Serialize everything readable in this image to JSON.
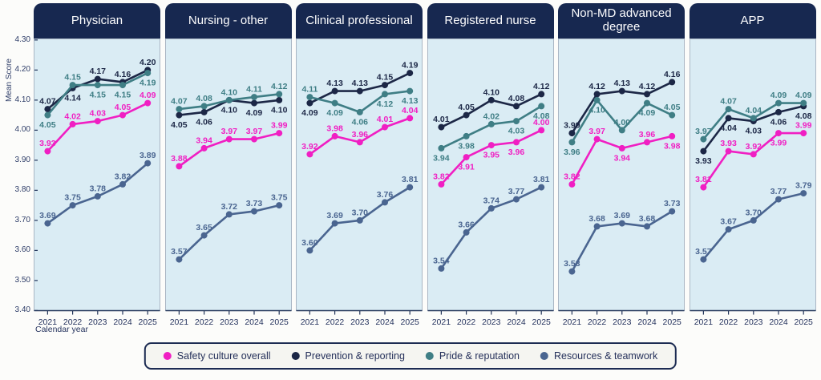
{
  "chart_data": {
    "type": "line",
    "ylabel": "Mean Score",
    "xlabel": "Calendar year",
    "ylim": [
      3.4,
      4.3
    ],
    "yticks": [
      "4.30",
      "4.20",
      "4.10",
      "4.00",
      "3.90",
      "3.80",
      "3.70",
      "3.60",
      "3.50",
      "3.40"
    ],
    "x": [
      "2021",
      "2022",
      "2023",
      "2024",
      "2025"
    ],
    "grid": false,
    "legend_position": "bottom",
    "series_defs": [
      {
        "name": "Safety culture overall",
        "color": "#F01FC3"
      },
      {
        "name": "Prevention & reporting",
        "color": "#1C2746"
      },
      {
        "name": "Pride & reputation",
        "color": "#3F7E85"
      },
      {
        "name": "Resources & teamwork",
        "color": "#4A6590"
      }
    ],
    "panels": [
      {
        "title": "Physician",
        "series": [
          {
            "name": "Safety culture overall",
            "values": [
              3.93,
              4.02,
              4.03,
              4.05,
              4.09
            ]
          },
          {
            "name": "Prevention & reporting",
            "values": [
              4.07,
              4.14,
              4.17,
              4.16,
              4.2
            ]
          },
          {
            "name": "Pride & reputation",
            "values": [
              4.05,
              4.15,
              4.15,
              4.15,
              4.19
            ]
          },
          {
            "name": "Resources & teamwork",
            "values": [
              3.69,
              3.75,
              3.78,
              3.82,
              3.89
            ]
          }
        ]
      },
      {
        "title": "Nursing - other",
        "series": [
          {
            "name": "Safety culture overall",
            "values": [
              3.88,
              3.94,
              3.97,
              3.97,
              3.99
            ]
          },
          {
            "name": "Prevention & reporting",
            "values": [
              4.05,
              4.06,
              4.1,
              4.09,
              4.1
            ]
          },
          {
            "name": "Pride & reputation",
            "values": [
              4.07,
              4.08,
              4.1,
              4.11,
              4.12
            ]
          },
          {
            "name": "Resources & teamwork",
            "values": [
              3.57,
              3.65,
              3.72,
              3.73,
              3.75
            ]
          }
        ]
      },
      {
        "title": "Clinical professional",
        "series": [
          {
            "name": "Safety culture overall",
            "values": [
              3.92,
              3.98,
              3.96,
              4.01,
              4.04
            ]
          },
          {
            "name": "Prevention & reporting",
            "values": [
              4.09,
              4.13,
              4.13,
              4.15,
              4.19
            ]
          },
          {
            "name": "Pride & reputation",
            "values": [
              4.11,
              4.09,
              4.06,
              4.12,
              4.13
            ]
          },
          {
            "name": "Resources & teamwork",
            "values": [
              3.6,
              3.69,
              3.7,
              3.76,
              3.81
            ]
          }
        ]
      },
      {
        "title": "Registered nurse",
        "series": [
          {
            "name": "Safety culture overall",
            "values": [
              3.82,
              3.91,
              3.95,
              3.96,
              4.0
            ]
          },
          {
            "name": "Prevention & reporting",
            "values": [
              4.01,
              4.05,
              4.1,
              4.08,
              4.12
            ]
          },
          {
            "name": "Pride & reputation",
            "values": [
              3.94,
              3.98,
              4.02,
              4.03,
              4.08
            ]
          },
          {
            "name": "Resources & teamwork",
            "values": [
              3.54,
              3.66,
              3.74,
              3.77,
              3.81
            ]
          }
        ]
      },
      {
        "title": "Non-MD advanced degree",
        "series": [
          {
            "name": "Safety culture overall",
            "values": [
              3.82,
              3.97,
              3.94,
              3.96,
              3.98
            ]
          },
          {
            "name": "Prevention & reporting",
            "values": [
              3.99,
              4.12,
              4.13,
              4.12,
              4.16
            ]
          },
          {
            "name": "Pride & reputation",
            "values": [
              3.96,
              4.1,
              4.0,
              4.09,
              4.05
            ]
          },
          {
            "name": "Resources & teamwork",
            "values": [
              3.53,
              3.68,
              3.69,
              3.68,
              3.73
            ]
          }
        ]
      },
      {
        "title": "APP",
        "series": [
          {
            "name": "Safety culture overall",
            "values": [
              3.81,
              3.93,
              3.92,
              3.99,
              3.99
            ]
          },
          {
            "name": "Prevention & reporting",
            "values": [
              3.93,
              4.04,
              4.03,
              4.06,
              4.08
            ]
          },
          {
            "name": "Pride & reputation",
            "values": [
              3.97,
              4.07,
              4.04,
              4.09,
              4.09
            ]
          },
          {
            "name": "Resources & teamwork",
            "values": [
              3.57,
              3.67,
              3.7,
              3.77,
              3.79
            ]
          }
        ]
      }
    ],
    "colors": {
      "panel_background": "#DAECF4",
      "panel_border": "#A9B6C4",
      "axis": "#223459",
      "header_background": "#172850",
      "header_text": "#FDFDFE",
      "tick_text": "#2E3D68",
      "year_text": "#25335E",
      "legend_border": "#1C2B52",
      "legend_background": "#F5F5F1"
    }
  }
}
